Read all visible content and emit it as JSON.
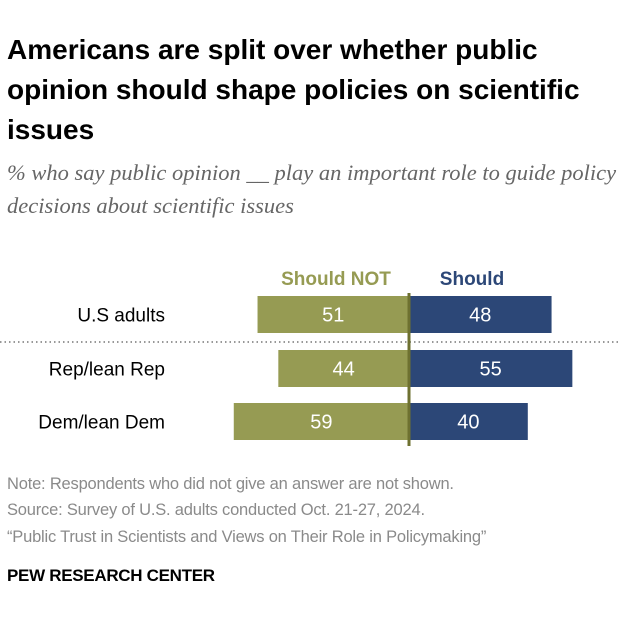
{
  "title": "Americans are split over whether public opinion should shape policies on scientific issues",
  "subtitle": "% who say public opinion __ play an important role to guide policy decisions about scientific issues",
  "chart_data": {
    "type": "bar",
    "orientation": "horizontal-diverging",
    "categories": [
      "U.S adults",
      "Rep/lean Rep",
      "Dem/lean Dem"
    ],
    "series": [
      {
        "name": "Should NOT",
        "values": [
          51,
          44,
          59
        ],
        "color": "#969b53",
        "direction": "left"
      },
      {
        "name": "Should",
        "values": [
          48,
          55,
          40
        ],
        "color": "#2c4777",
        "direction": "right"
      }
    ],
    "separator_after_category": 0,
    "axis_color": "#6e7130",
    "grid": false,
    "legend": "top"
  },
  "notes": [
    "Note: Respondents who did not give an answer are not shown.",
    "Source: Survey of U.S. adults conducted Oct. 21-27, 2024.",
    "“Public Trust in Scientists and Views on Their Role in Policymaking”"
  ],
  "brand": "PEW RESEARCH CENTER"
}
